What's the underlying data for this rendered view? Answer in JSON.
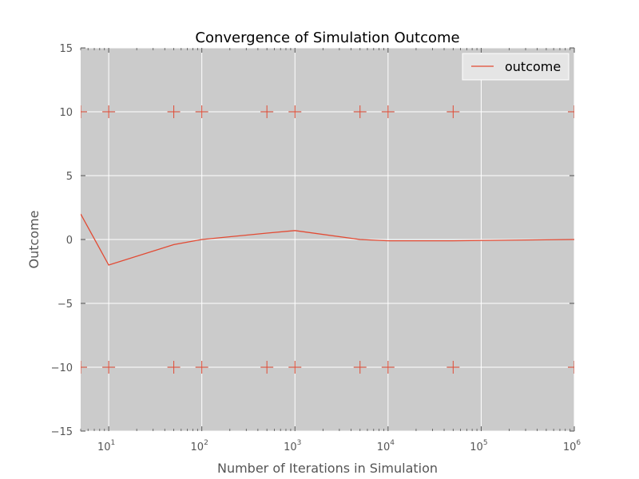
{
  "chart_data": {
    "type": "line",
    "title": "Convergence of Simulation Outcome",
    "xlabel": "Number of Iterations in Simulation",
    "ylabel": "Outcome",
    "xscale": "log",
    "xlim": [
      5,
      1000000
    ],
    "ylim": [
      -15,
      15
    ],
    "grid": true,
    "legend_position": "top-right",
    "colors": {
      "series": "#e24a33",
      "plot_background": "#cbcbcb",
      "grid": "#ffffff",
      "text": "#555555"
    },
    "x_ticks": [
      {
        "base": "10",
        "exp": "1",
        "value": 10
      },
      {
        "base": "10",
        "exp": "2",
        "value": 100
      },
      {
        "base": "10",
        "exp": "3",
        "value": 1000
      },
      {
        "base": "10",
        "exp": "4",
        "value": 10000
      },
      {
        "base": "10",
        "exp": "5",
        "value": 100000
      },
      {
        "base": "10",
        "exp": "6",
        "value": 1000000
      }
    ],
    "y_ticks": [
      {
        "label": "15",
        "value": 15
      },
      {
        "label": "10",
        "value": 10
      },
      {
        "label": "5",
        "value": 5
      },
      {
        "label": "0",
        "value": 0
      },
      {
        "label": "−5",
        "value": -5
      },
      {
        "label": "−10",
        "value": -10
      },
      {
        "label": "−15",
        "value": -15
      }
    ],
    "series": [
      {
        "name": "outcome",
        "x": [
          5,
          10,
          50,
          100,
          500,
          1000,
          5000,
          10000,
          50000,
          1000000
        ],
        "y": [
          2.0,
          -2.0,
          -0.4,
          0.0,
          0.5,
          0.7,
          0.0,
          -0.1,
          -0.1,
          0.0
        ]
      }
    ],
    "markers": {
      "symbol": "+",
      "x": [
        5,
        10,
        50,
        100,
        500,
        1000,
        5000,
        10000,
        50000,
        1000000
      ],
      "upper_y": 10,
      "lower_y": -10
    }
  }
}
